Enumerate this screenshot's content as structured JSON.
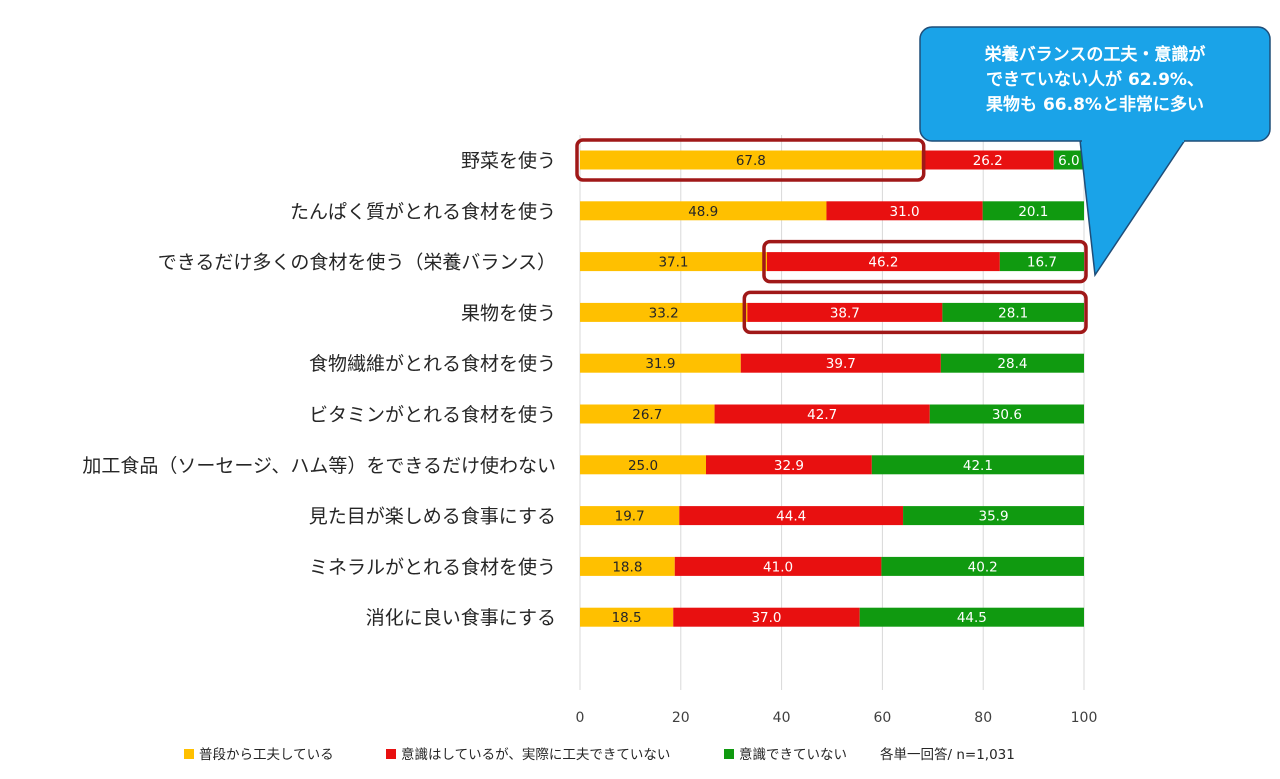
{
  "chart_data": {
    "type": "bar",
    "orientation": "horizontal",
    "stacked": true,
    "categories": [
      "野菜を使う",
      "たんぱく質がとれる食材を使う",
      "できるだけ多くの食材を使う（栄養バランス）",
      "果物を使う",
      "食物繊維がとれる食材を使う",
      "ビタミンがとれる食材を使う",
      "加工食品（ソーセージ、ハム等）をできるだけ使わない",
      "見た目が楽しめる食事にする",
      "ミネラルがとれる食材を使う",
      "消化に良い食事にする"
    ],
    "series": [
      {
        "name": "普段から工夫している",
        "color": "#FFC000",
        "values": [
          67.8,
          48.9,
          37.1,
          33.2,
          31.9,
          26.7,
          25.0,
          19.7,
          18.8,
          18.5
        ]
      },
      {
        "name": "意識はしているが、実際に工夫できていない",
        "color": "#E81010",
        "values": [
          26.2,
          31.0,
          46.2,
          38.7,
          39.7,
          42.7,
          32.9,
          44.4,
          41.0,
          37.0
        ]
      },
      {
        "name": "意識できていない",
        "color": "#109A10",
        "values": [
          6.0,
          20.1,
          16.7,
          28.1,
          28.4,
          30.6,
          42.1,
          35.9,
          40.2,
          44.5
        ]
      }
    ],
    "value_labels": [
      [
        "67.8",
        "26.2",
        "6.0"
      ],
      [
        "48.9",
        "31.0",
        "20.1"
      ],
      [
        "37.1",
        "46.2",
        "16.7"
      ],
      [
        "33.2",
        "38.7",
        "28.1"
      ],
      [
        "31.9",
        "39.7",
        "28.4"
      ],
      [
        "26.7",
        "42.7",
        "30.6"
      ],
      [
        "25.0",
        "32.9",
        "42.1"
      ],
      [
        "19.7",
        "44.4",
        "35.9"
      ],
      [
        "18.8",
        "41.0",
        "40.2"
      ],
      [
        "18.5",
        "37.0",
        "44.5"
      ]
    ],
    "xlim": [
      0,
      100
    ],
    "xticks": [
      "0",
      "20",
      "40",
      "60",
      "80",
      "100"
    ],
    "grid": true,
    "legend_position": "bottom",
    "note": "各単一回答/ n=1,031",
    "callout": {
      "lines": [
        "栄養バランスの工夫・意識が",
        "できていない人が 62.9%、",
        "果物も 66.8%と非常に多い"
      ],
      "fill": "#1AA3E8",
      "border": "#1F4E79"
    },
    "highlights": [
      {
        "category_index": 0,
        "series": [
          0
        ]
      },
      {
        "category_index": 2,
        "series": [
          1,
          2
        ]
      },
      {
        "category_index": 3,
        "series": [
          1,
          2
        ]
      }
    ],
    "highlight_color": "#A01818"
  }
}
